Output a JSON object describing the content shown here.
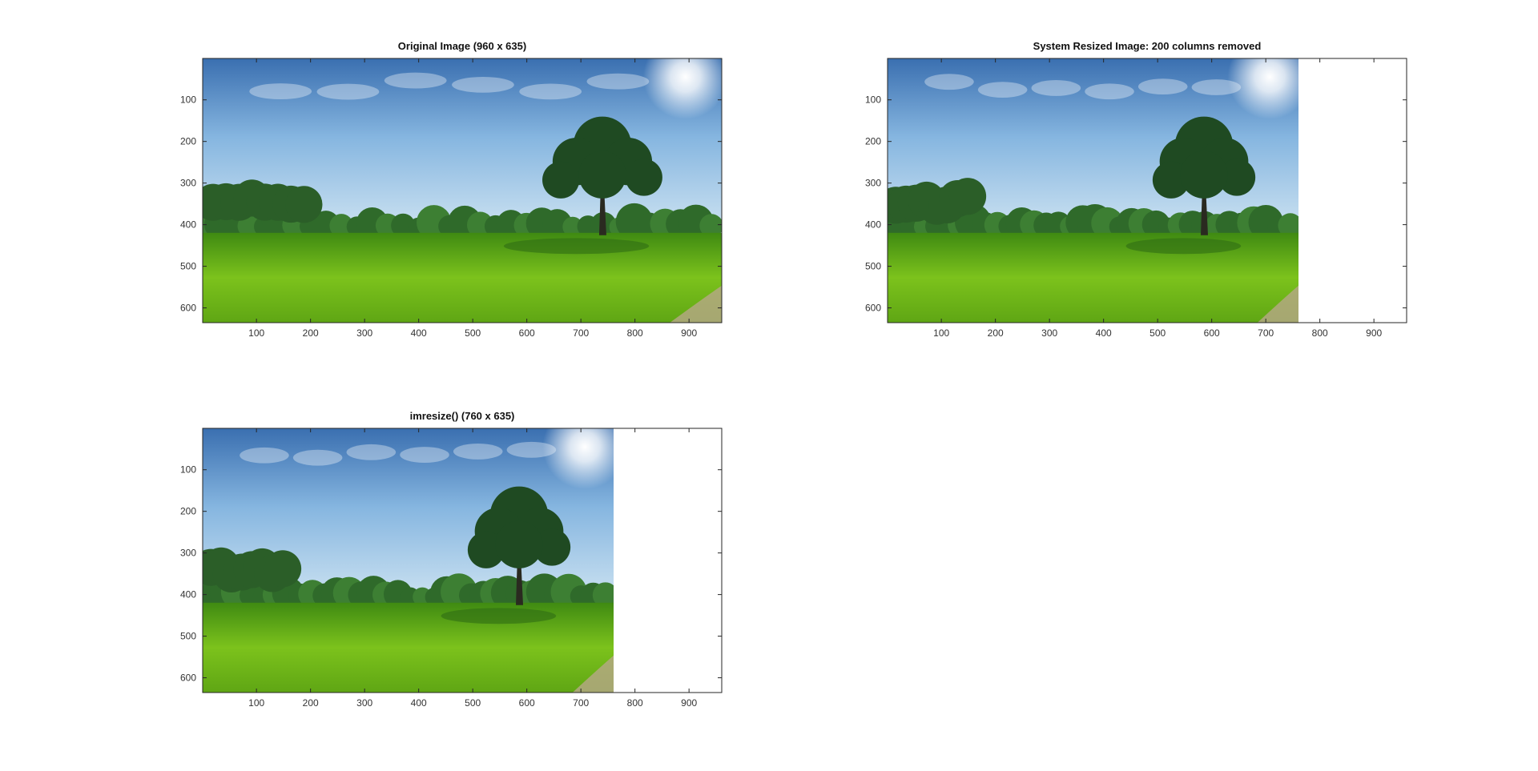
{
  "figure": {
    "panels": [
      {
        "id": "original",
        "title": "Original Image (960 x 635)",
        "image_width": 960
      },
      {
        "id": "system",
        "title": "System Resized Image: 200 columns removed",
        "image_width": 760
      },
      {
        "id": "imresize",
        "title": "imresize() (760 x 635)",
        "image_width": 760
      }
    ]
  },
  "chart_data": [
    {
      "type": "image",
      "title": "Original Image (960 x 635)",
      "xlim": [
        0.5,
        960.5
      ],
      "ylim": [
        0.5,
        635.5
      ],
      "image_width": 960,
      "image_height": 635,
      "xticks": [
        100,
        200,
        300,
        400,
        500,
        600,
        700,
        800,
        900
      ],
      "yticks": [
        100,
        200,
        300,
        400,
        500,
        600
      ]
    },
    {
      "type": "image",
      "title": "System Resized Image: 200 columns removed",
      "xlim": [
        0.5,
        960.5
      ],
      "ylim": [
        0.5,
        635.5
      ],
      "image_width": 760,
      "image_height": 635,
      "xticks": [
        100,
        200,
        300,
        400,
        500,
        600,
        700,
        800,
        900
      ],
      "yticks": [
        100,
        200,
        300,
        400,
        500,
        600
      ]
    },
    {
      "type": "image",
      "title": "imresize() (760 x 635)",
      "xlim": [
        0.5,
        960.5
      ],
      "ylim": [
        0.5,
        635.5
      ],
      "image_width": 760,
      "image_height": 635,
      "xticks": [
        100,
        200,
        300,
        400,
        500,
        600,
        700,
        800,
        900
      ],
      "yticks": [
        100,
        200,
        300,
        400,
        500,
        600
      ]
    }
  ],
  "colors": {
    "sky_top": "#3a6fb0",
    "sky_mid": "#86b6e0",
    "sky_horizon": "#cfe4f2",
    "grass_light": "#7cc21c",
    "grass_dark": "#3f8a12",
    "foliage": "#1f4a22",
    "trunk": "#2a2a20"
  }
}
